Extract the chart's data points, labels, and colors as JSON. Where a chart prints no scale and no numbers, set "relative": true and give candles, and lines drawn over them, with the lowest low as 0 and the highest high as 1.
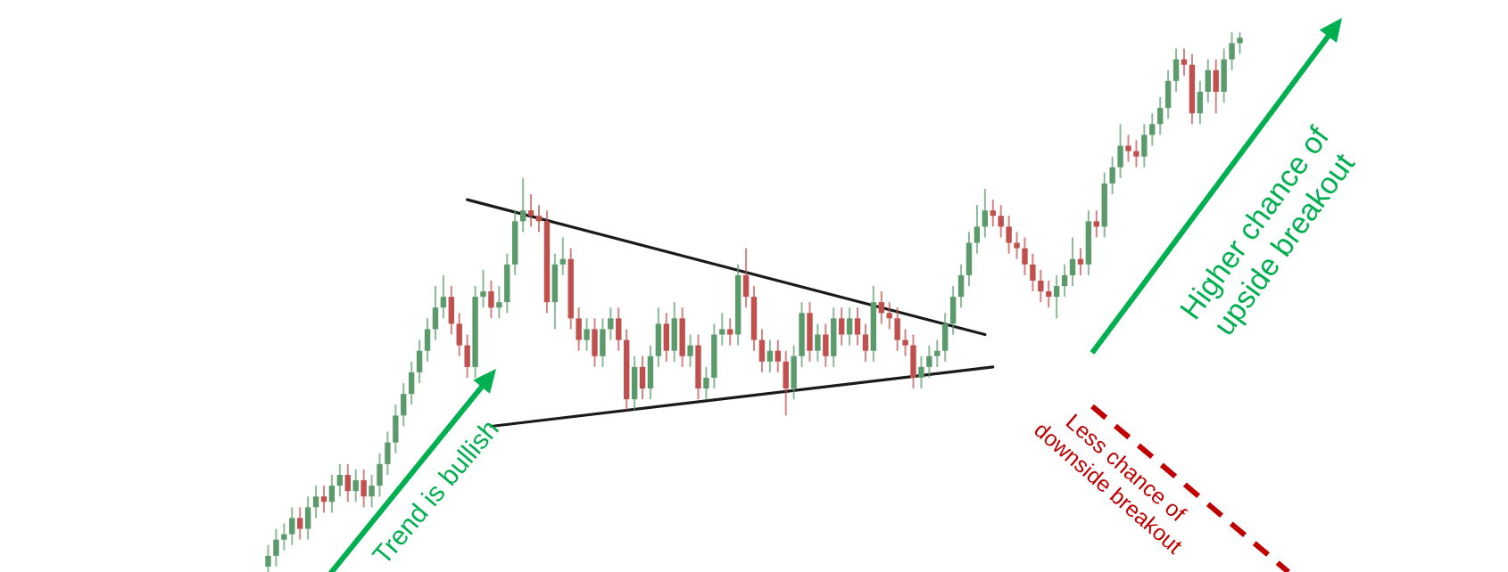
{
  "chart_data": {
    "type": "candlestick",
    "relative": true,
    "categories": [
      null,
      null,
      null,
      null,
      null,
      null,
      null,
      null,
      null,
      null,
      null,
      null,
      null,
      null,
      null,
      null,
      null,
      null,
      null,
      null,
      null,
      null,
      null,
      null,
      null,
      null,
      null,
      null,
      null,
      null,
      null,
      null,
      null,
      null,
      null,
      null,
      null,
      null,
      null,
      null,
      null,
      null,
      null,
      null,
      null,
      null,
      null,
      null,
      null,
      null,
      null,
      null,
      null,
      null,
      null,
      null,
      null,
      null,
      null,
      null,
      null,
      null,
      null,
      null,
      null,
      null,
      null,
      null,
      null,
      null,
      null,
      null,
      null,
      null,
      null,
      null,
      null,
      null,
      null,
      null,
      null,
      null,
      null,
      null,
      null,
      null,
      null,
      null,
      null,
      null,
      null,
      null,
      null,
      null,
      null,
      null,
      null,
      null,
      null,
      null,
      null,
      null,
      null,
      null,
      null,
      null,
      null,
      null,
      null,
      null,
      null,
      null,
      null,
      null,
      null,
      null,
      null,
      null,
      null,
      null,
      null,
      null,
      null
    ],
    "ohlc": [
      [
        0.01,
        0.05,
        0,
        0.03
      ],
      [
        0.03,
        0.08,
        0.01,
        0.06
      ],
      [
        0.06,
        0.09,
        0.04,
        0.07
      ],
      [
        0.07,
        0.12,
        0.05,
        0.1
      ],
      [
        0.1,
        0.12,
        0.06,
        0.08
      ],
      [
        0.08,
        0.14,
        0.06,
        0.12
      ],
      [
        0.12,
        0.16,
        0.1,
        0.14
      ],
      [
        0.14,
        0.16,
        0.11,
        0.13
      ],
      [
        0.13,
        0.18,
        0.11,
        0.16
      ],
      [
        0.16,
        0.2,
        0.14,
        0.18
      ],
      [
        0.18,
        0.2,
        0.13,
        0.15
      ],
      [
        0.15,
        0.19,
        0.13,
        0.17
      ],
      [
        0.17,
        0.19,
        0.12,
        0.14
      ],
      [
        0.14,
        0.18,
        0.12,
        0.16
      ],
      [
        0.16,
        0.22,
        0.14,
        0.2
      ],
      [
        0.2,
        0.26,
        0.18,
        0.24
      ],
      [
        0.24,
        0.31,
        0.22,
        0.29
      ],
      [
        0.29,
        0.35,
        0.27,
        0.33
      ],
      [
        0.33,
        0.39,
        0.31,
        0.37
      ],
      [
        0.37,
        0.43,
        0.35,
        0.41
      ],
      [
        0.41,
        0.47,
        0.39,
        0.45
      ],
      [
        0.45,
        0.53,
        0.43,
        0.49
      ],
      [
        0.49,
        0.55,
        0.47,
        0.51
      ],
      [
        0.51,
        0.53,
        0.44,
        0.46
      ],
      [
        0.46,
        0.48,
        0.4,
        0.42
      ],
      [
        0.42,
        0.44,
        0.36,
        0.38
      ],
      [
        0.38,
        0.53,
        0.36,
        0.51
      ],
      [
        0.51,
        0.56,
        0.49,
        0.52
      ],
      [
        0.52,
        0.54,
        0.47,
        0.49
      ],
      [
        0.49,
        0.53,
        0.47,
        0.5
      ],
      [
        0.5,
        0.59,
        0.48,
        0.57
      ],
      [
        0.57,
        0.67,
        0.55,
        0.65
      ],
      [
        0.65,
        0.73,
        0.63,
        0.67
      ],
      [
        0.67,
        0.7,
        0.64,
        0.66
      ],
      [
        0.66,
        0.68,
        0.63,
        0.65
      ],
      [
        0.65,
        0.67,
        0.48,
        0.5
      ],
      [
        0.5,
        0.59,
        0.45,
        0.57
      ],
      [
        0.57,
        0.62,
        0.55,
        0.58
      ],
      [
        0.58,
        0.6,
        0.45,
        0.47
      ],
      [
        0.47,
        0.49,
        0.41,
        0.43
      ],
      [
        0.43,
        0.47,
        0.41,
        0.45
      ],
      [
        0.45,
        0.47,
        0.38,
        0.4
      ],
      [
        0.4,
        0.47,
        0.38,
        0.45
      ],
      [
        0.45,
        0.49,
        0.43,
        0.47
      ],
      [
        0.47,
        0.49,
        0.41,
        0.43
      ],
      [
        0.43,
        0.45,
        0.3,
        0.32
      ],
      [
        0.32,
        0.4,
        0.3,
        0.38
      ],
      [
        0.38,
        0.4,
        0.32,
        0.34
      ],
      [
        0.34,
        0.42,
        0.32,
        0.4
      ],
      [
        0.4,
        0.49,
        0.38,
        0.46
      ],
      [
        0.46,
        0.48,
        0.39,
        0.41
      ],
      [
        0.41,
        0.5,
        0.39,
        0.47
      ],
      [
        0.47,
        0.49,
        0.38,
        0.4
      ],
      [
        0.4,
        0.44,
        0.38,
        0.42
      ],
      [
        0.42,
        0.44,
        0.32,
        0.34
      ],
      [
        0.34,
        0.38,
        0.32,
        0.36
      ],
      [
        0.36,
        0.46,
        0.34,
        0.44
      ],
      [
        0.44,
        0.48,
        0.42,
        0.45
      ],
      [
        0.45,
        0.47,
        0.42,
        0.44
      ],
      [
        0.44,
        0.57,
        0.42,
        0.55
      ],
      [
        0.55,
        0.6,
        0.49,
        0.51
      ],
      [
        0.51,
        0.53,
        0.41,
        0.43
      ],
      [
        0.43,
        0.45,
        0.37,
        0.39
      ],
      [
        0.39,
        0.43,
        0.37,
        0.41
      ],
      [
        0.41,
        0.43,
        0.37,
        0.39
      ],
      [
        0.39,
        0.41,
        0.29,
        0.34
      ],
      [
        0.34,
        0.42,
        0.32,
        0.4
      ],
      [
        0.4,
        0.5,
        0.38,
        0.48
      ],
      [
        0.48,
        0.5,
        0.39,
        0.41
      ],
      [
        0.41,
        0.46,
        0.39,
        0.44
      ],
      [
        0.44,
        0.46,
        0.38,
        0.4
      ],
      [
        0.4,
        0.49,
        0.38,
        0.47
      ],
      [
        0.47,
        0.49,
        0.42,
        0.44
      ],
      [
        0.44,
        0.49,
        0.42,
        0.47
      ],
      [
        0.47,
        0.49,
        0.42,
        0.44
      ],
      [
        0.44,
        0.46,
        0.39,
        0.41
      ],
      [
        0.41,
        0.53,
        0.39,
        0.5
      ],
      [
        0.5,
        0.52,
        0.46,
        0.48
      ],
      [
        0.48,
        0.5,
        0.45,
        0.47
      ],
      [
        0.47,
        0.49,
        0.41,
        0.43
      ],
      [
        0.43,
        0.45,
        0.4,
        0.42
      ],
      [
        0.42,
        0.44,
        0.34,
        0.36
      ],
      [
        0.36,
        0.4,
        0.34,
        0.38
      ],
      [
        0.38,
        0.42,
        0.36,
        0.4
      ],
      [
        0.4,
        0.43,
        0.38,
        0.41
      ],
      [
        0.41,
        0.48,
        0.39,
        0.46
      ],
      [
        0.46,
        0.53,
        0.44,
        0.51
      ],
      [
        0.51,
        0.57,
        0.49,
        0.55
      ],
      [
        0.55,
        0.63,
        0.53,
        0.61
      ],
      [
        0.61,
        0.68,
        0.59,
        0.64
      ],
      [
        0.64,
        0.71,
        0.62,
        0.67
      ],
      [
        0.67,
        0.69,
        0.64,
        0.66
      ],
      [
        0.66,
        0.68,
        0.62,
        0.64
      ],
      [
        0.64,
        0.66,
        0.59,
        0.61
      ],
      [
        0.61,
        0.63,
        0.58,
        0.6
      ],
      [
        0.6,
        0.62,
        0.55,
        0.57
      ],
      [
        0.57,
        0.59,
        0.52,
        0.54
      ],
      [
        0.54,
        0.56,
        0.5,
        0.52
      ],
      [
        0.52,
        0.54,
        0.49,
        0.51
      ],
      [
        0.51,
        0.55,
        0.47,
        0.53
      ],
      [
        0.53,
        0.57,
        0.51,
        0.55
      ],
      [
        0.55,
        0.62,
        0.53,
        0.58
      ],
      [
        0.58,
        0.6,
        0.55,
        0.57
      ],
      [
        0.57,
        0.67,
        0.55,
        0.65
      ],
      [
        0.65,
        0.67,
        0.62,
        0.64
      ],
      [
        0.64,
        0.74,
        0.62,
        0.72
      ],
      [
        0.72,
        0.77,
        0.7,
        0.75
      ],
      [
        0.75,
        0.83,
        0.73,
        0.79
      ],
      [
        0.79,
        0.81,
        0.76,
        0.78
      ],
      [
        0.78,
        0.8,
        0.75,
        0.77
      ],
      [
        0.77,
        0.83,
        0.75,
        0.81
      ],
      [
        0.81,
        0.85,
        0.79,
        0.83
      ],
      [
        0.83,
        0.88,
        0.81,
        0.86
      ],
      [
        0.86,
        0.93,
        0.84,
        0.91
      ],
      [
        0.91,
        0.97,
        0.89,
        0.95
      ],
      [
        0.95,
        0.97,
        0.92,
        0.94
      ],
      [
        0.94,
        0.96,
        0.83,
        0.85
      ],
      [
        0.85,
        0.91,
        0.83,
        0.89
      ],
      [
        0.89,
        0.95,
        0.87,
        0.93
      ],
      [
        0.93,
        0.95,
        0.85,
        0.89
      ],
      [
        0.89,
        0.97,
        0.87,
        0.95
      ],
      [
        0.95,
        1,
        0.93,
        0.98
      ],
      [
        0.98,
        1,
        0.96,
        0.99
      ]
    ],
    "colors": [
      "#5b9b6b",
      "#5b9b6b",
      "#5b9b6b",
      "#5b9b6b",
      "#c0504d",
      "#5b9b6b",
      "#5b9b6b",
      "#c0504d",
      "#5b9b6b",
      "#5b9b6b",
      "#c0504d",
      "#5b9b6b",
      "#c0504d",
      "#5b9b6b",
      "#5b9b6b",
      "#5b9b6b",
      "#5b9b6b",
      "#5b9b6b",
      "#5b9b6b",
      "#5b9b6b",
      "#5b9b6b",
      "#5b9b6b",
      "#5b9b6b",
      "#c0504d",
      "#c0504d",
      "#c0504d",
      "#5b9b6b",
      "#5b9b6b",
      "#c0504d",
      "#5b9b6b",
      "#5b9b6b",
      "#5b9b6b",
      "#5b9b6b",
      "#c0504d",
      "#c0504d",
      "#c0504d",
      "#5b9b6b",
      "#5b9b6b",
      "#c0504d",
      "#c0504d",
      "#5b9b6b",
      "#c0504d",
      "#5b9b6b",
      "#5b9b6b",
      "#c0504d",
      "#c0504d",
      "#5b9b6b",
      "#c0504d",
      "#5b9b6b",
      "#5b9b6b",
      "#c0504d",
      "#5b9b6b",
      "#c0504d",
      "#5b9b6b",
      "#c0504d",
      "#5b9b6b",
      "#5b9b6b",
      "#5b9b6b",
      "#c0504d",
      "#5b9b6b",
      "#c0504d",
      "#c0504d",
      "#c0504d",
      "#5b9b6b",
      "#c0504d",
      "#c0504d",
      "#5b9b6b",
      "#5b9b6b",
      "#c0504d",
      "#5b9b6b",
      "#c0504d",
      "#5b9b6b",
      "#c0504d",
      "#5b9b6b",
      "#c0504d",
      "#c0504d",
      "#5b9b6b",
      "#c0504d",
      "#c0504d",
      "#c0504d",
      "#c0504d",
      "#c0504d",
      "#5b9b6b",
      "#5b9b6b",
      "#5b9b6b",
      "#5b9b6b",
      "#5b9b6b",
      "#5b9b6b",
      "#5b9b6b",
      "#5b9b6b",
      "#5b9b6b",
      "#c0504d",
      "#c0504d",
      "#c0504d",
      "#c0504d",
      "#c0504d",
      "#c0504d",
      "#c0504d",
      "#c0504d",
      "#5b9b6b",
      "#5b9b6b",
      "#5b9b6b",
      "#c0504d",
      "#5b9b6b",
      "#c0504d",
      "#5b9b6b",
      "#5b9b6b",
      "#5b9b6b",
      "#c0504d",
      "#c0504d",
      "#5b9b6b",
      "#5b9b6b",
      "#5b9b6b",
      "#5b9b6b",
      "#5b9b6b",
      "#c0504d",
      "#c0504d",
      "#5b9b6b",
      "#5b9b6b",
      "#c0504d",
      "#5b9b6b",
      "#5b9b6b",
      "#5b9b6b"
    ],
    "series": [
      {
        "type": "line",
        "color": "#1a1a1a",
        "values": [
          null,
          null,
          null,
          null,
          null,
          null,
          null,
          null,
          null,
          null,
          null,
          null,
          null,
          null,
          null,
          null,
          null,
          null,
          null,
          null,
          null,
          null,
          null,
          null,
          null,
          0.69,
          null,
          null,
          null,
          null,
          null,
          null,
          null,
          null,
          null,
          null,
          null,
          null,
          null,
          null,
          null,
          null,
          null,
          null,
          null,
          null,
          null,
          null,
          null,
          null,
          null,
          null,
          null,
          null,
          null,
          null,
          null,
          null,
          null,
          null,
          null,
          null,
          null,
          null,
          null,
          null,
          null,
          null,
          null,
          null,
          null,
          null,
          null,
          null,
          null,
          null,
          null,
          null,
          null,
          null,
          null,
          null,
          null,
          null,
          null,
          null,
          null,
          null,
          null,
          null,
          0.44,
          null,
          null,
          null,
          null,
          null,
          null,
          null,
          null,
          null,
          null,
          null,
          null,
          null,
          null,
          null,
          null,
          null,
          null,
          null,
          null,
          null,
          null,
          null,
          null,
          null,
          null,
          null,
          null,
          null,
          null,
          null,
          null
        ]
      },
      {
        "type": "line",
        "color": "#1a1a1a",
        "values": [
          null,
          null,
          null,
          null,
          null,
          null,
          null,
          null,
          null,
          null,
          null,
          null,
          null,
          null,
          null,
          null,
          null,
          null,
          null,
          null,
          null,
          null,
          null,
          null,
          null,
          null,
          null,
          null,
          0.27,
          null,
          null,
          null,
          null,
          null,
          null,
          null,
          null,
          null,
          null,
          null,
          null,
          null,
          null,
          null,
          null,
          null,
          null,
          null,
          null,
          null,
          null,
          null,
          null,
          null,
          null,
          null,
          null,
          null,
          null,
          null,
          null,
          null,
          null,
          null,
          null,
          null,
          null,
          null,
          null,
          null,
          null,
          null,
          null,
          null,
          null,
          null,
          null,
          null,
          null,
          null,
          null,
          null,
          null,
          null,
          null,
          null,
          null,
          null,
          null,
          null,
          null,
          0.38,
          null,
          null,
          null,
          null,
          null,
          null,
          null,
          null,
          null,
          null,
          null,
          null,
          null,
          null,
          null,
          null,
          null,
          null,
          null,
          null,
          null,
          null,
          null,
          null,
          null,
          null,
          null,
          null,
          null,
          null,
          null
        ]
      }
    ],
    "annotations": [
      "Trend is bullish",
      "Higher chance of upside breakout",
      "Less chance of downside breakout"
    ]
  }
}
